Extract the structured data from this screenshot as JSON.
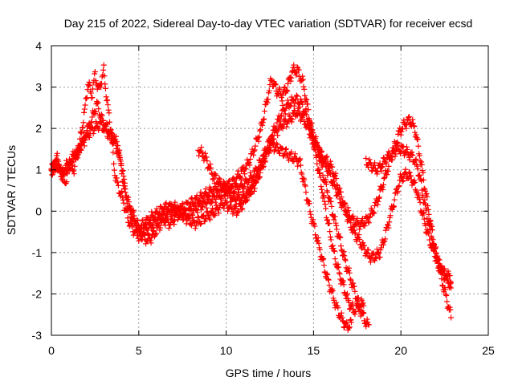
{
  "chart_data": {
    "type": "scatter",
    "title": "Day 215 of 2022, Sidereal Day-to-day VTEC variation (SDTVAR) for receiver ecsd",
    "xlabel": "GPS time / hours",
    "ylabel": "SDTVAR / TECUs",
    "xlim": [
      0,
      25
    ],
    "ylim": [
      -3,
      4
    ],
    "xticks": [
      0,
      5,
      10,
      15,
      20,
      25
    ],
    "yticks": [
      -3,
      -2,
      -1,
      0,
      1,
      2,
      3,
      4
    ],
    "grid": true,
    "legend": "none",
    "marker": "+",
    "color": "#ff0000",
    "series": [
      {
        "x": [
          0.0,
          0.3,
          0.6,
          1.0,
          1.3,
          1.6,
          1.9,
          2.1,
          2.3,
          2.5,
          2.7,
          3.0,
          3.2,
          3.4,
          3.6,
          3.8,
          4.0,
          4.2,
          4.4,
          4.6,
          4.8,
          5.0,
          5.2,
          5.5,
          5.8,
          6.1,
          6.4,
          6.8,
          7.2,
          7.6,
          8.0,
          8.4,
          8.8,
          9.2,
          9.6,
          10.0,
          10.4,
          10.8,
          11.2,
          11.6,
          12.0,
          12.3,
          12.6,
          12.9,
          13.2,
          13.5,
          13.8,
          14.1,
          14.4,
          14.7,
          15.0,
          15.3,
          15.6,
          15.9,
          16.2,
          16.5,
          16.8,
          17.1,
          17.4,
          17.7,
          18.0,
          18.2
        ],
        "y": [
          1.0,
          1.3,
          0.9,
          1.2,
          1.0,
          1.6,
          2.4,
          3.1,
          2.8,
          3.3,
          2.9,
          3.4,
          2.6,
          2.0,
          1.0,
          0.6,
          0.4,
          0.1,
          -0.2,
          -0.4,
          -0.5,
          -0.6,
          -0.5,
          -0.4,
          -0.3,
          -0.2,
          -0.1,
          0.0,
          0.0,
          0.1,
          0.2,
          0.3,
          0.4,
          0.5,
          0.6,
          0.6,
          0.7,
          0.9,
          1.1,
          1.5,
          2.0,
          2.6,
          3.2,
          2.9,
          2.8,
          3.0,
          3.4,
          3.4,
          3.1,
          2.4,
          1.8,
          1.4,
          0.8,
          0.3,
          -0.2,
          -0.7,
          -1.2,
          -1.6,
          -2.0,
          -2.4,
          -2.7,
          -2.8
        ]
      },
      {
        "x": [
          0.0,
          0.3,
          0.6,
          1.0,
          1.3,
          1.6,
          2.0,
          2.3,
          2.6,
          2.9,
          3.2,
          3.5,
          3.8,
          4.0,
          4.2,
          4.4,
          4.6,
          4.8,
          5.0,
          5.2,
          5.5,
          5.8,
          6.1,
          6.4,
          6.8,
          7.2,
          7.6,
          8.0,
          8.4,
          8.8,
          9.2,
          9.6,
          10.0,
          10.4,
          10.8,
          11.2,
          11.6,
          12.0,
          12.4,
          12.8,
          13.2,
          13.6,
          14.0,
          14.3,
          14.6,
          14.9,
          15.2,
          15.5,
          15.8,
          16.1,
          16.4,
          16.7,
          17.0,
          17.3,
          17.6,
          17.9
        ],
        "y": [
          0.9,
          1.2,
          0.8,
          1.1,
          1.3,
          1.5,
          1.9,
          2.2,
          2.6,
          2.2,
          2.0,
          1.8,
          1.6,
          1.0,
          0.5,
          0.1,
          -0.1,
          -0.3,
          -0.5,
          -0.6,
          -0.7,
          -0.6,
          -0.4,
          -0.2,
          -0.3,
          -0.1,
          -0.1,
          0.0,
          0.1,
          0.2,
          0.3,
          0.4,
          0.5,
          0.5,
          0.6,
          0.7,
          0.9,
          1.2,
          1.6,
          2.0,
          2.4,
          2.6,
          2.7,
          2.6,
          2.3,
          1.8,
          1.2,
          0.5,
          -0.2,
          -0.9,
          -1.4,
          -1.8,
          -2.2,
          -2.4,
          -2.3,
          -2.2
        ]
      },
      {
        "x": [
          0.0,
          0.4,
          0.8,
          1.2,
          1.6,
          2.0,
          2.4,
          2.8,
          3.2,
          3.6,
          4.0,
          4.2,
          4.4,
          4.6,
          4.8,
          5.0,
          5.3,
          5.6,
          5.9,
          6.2,
          6.6,
          7.0,
          7.4,
          7.8,
          8.2,
          8.6,
          9.0,
          9.4,
          9.8,
          10.2,
          10.6,
          11.0,
          11.4,
          11.8,
          12.2,
          12.6,
          13.0,
          13.4,
          13.8,
          14.2,
          14.5,
          14.8,
          15.1,
          15.4,
          15.7,
          16.0,
          16.3,
          16.6,
          16.9,
          17.2
        ],
        "y": [
          1.0,
          1.1,
          0.7,
          1.3,
          1.5,
          1.8,
          2.0,
          2.1,
          1.9,
          1.7,
          1.2,
          0.6,
          0.2,
          0.0,
          -0.2,
          -0.4,
          -0.3,
          -0.2,
          -0.1,
          0.0,
          0.1,
          0.1,
          0.0,
          -0.2,
          -0.3,
          -0.2,
          -0.1,
          0.0,
          0.2,
          0.1,
          0.0,
          0.2,
          0.5,
          0.9,
          1.3,
          1.6,
          1.5,
          1.4,
          1.3,
          1.2,
          0.6,
          0.0,
          -0.5,
          -1.0,
          -1.5,
          -1.9,
          -2.3,
          -2.6,
          -2.8,
          -2.7
        ]
      },
      {
        "x": [
          8.4,
          8.8,
          9.2,
          9.6,
          10.0,
          10.4,
          10.8,
          11.2,
          11.6,
          12.0,
          12.4,
          12.8,
          13.2,
          13.6,
          14.0,
          14.3,
          14.6,
          14.9,
          15.2,
          15.5,
          15.8,
          16.1,
          16.4,
          16.7,
          17.0,
          17.3,
          17.6,
          17.9,
          18.2,
          18.5,
          18.8,
          19.1,
          19.4,
          19.7,
          20.0,
          20.3,
          20.6,
          20.9,
          21.2,
          21.5,
          21.8,
          22.1,
          22.4,
          22.7,
          22.9
        ],
        "y": [
          1.5,
          1.3,
          0.9,
          0.7,
          0.5,
          0.3,
          0.3,
          0.4,
          0.6,
          1.0,
          1.5,
          1.9,
          2.1,
          2.2,
          2.4,
          2.3,
          2.1,
          1.8,
          1.5,
          1.3,
          1.2,
          1.0,
          0.6,
          0.2,
          -0.2,
          -0.5,
          -0.7,
          -0.9,
          -1.1,
          -1.1,
          -1.0,
          -0.6,
          -0.1,
          0.4,
          0.8,
          0.9,
          0.8,
          0.5,
          0.0,
          -0.5,
          -0.9,
          -1.2,
          -1.5,
          -1.7,
          -1.8
        ]
      },
      {
        "x": [
          14.8,
          15.1,
          15.4,
          15.7,
          16.0,
          16.3,
          16.6,
          16.9,
          17.2,
          17.5,
          17.8,
          18.1,
          18.4,
          18.7,
          19.0,
          19.3,
          19.6,
          19.9,
          20.2,
          20.5,
          20.8,
          21.1,
          21.4,
          21.7,
          22.0,
          22.3,
          22.6,
          22.9
        ],
        "y": [
          2.0,
          1.7,
          1.4,
          1.1,
          0.8,
          0.5,
          0.2,
          0.0,
          -0.2,
          -0.3,
          -0.3,
          -0.2,
          0.0,
          0.3,
          0.7,
          1.1,
          1.5,
          1.9,
          2.1,
          2.2,
          2.0,
          1.3,
          0.5,
          -0.3,
          -1.0,
          -1.6,
          -2.1,
          -2.6
        ]
      },
      {
        "x": [
          18.0,
          18.3,
          18.6,
          18.9,
          19.2,
          19.5,
          19.8,
          20.1,
          20.4,
          20.7,
          21.0,
          21.3,
          21.6,
          21.9,
          22.2,
          22.5,
          22.8,
          22.9
        ],
        "y": [
          1.2,
          1.1,
          1.0,
          1.1,
          1.3,
          1.4,
          1.5,
          1.5,
          1.4,
          1.3,
          1.0,
          0.3,
          -0.3,
          -0.9,
          -1.3,
          -1.5,
          -1.6,
          -1.8
        ]
      }
    ]
  }
}
